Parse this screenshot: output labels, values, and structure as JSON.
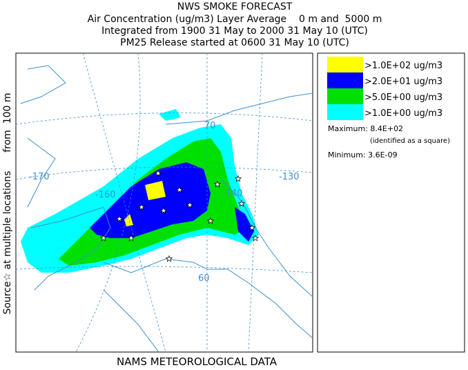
{
  "header": {
    "title": "NWS SMOKE FORECAST",
    "lines": [
      "Air Concentration (ug/m3) Layer Average    0 m and  5000 m",
      "Integrated from 1900 31 May to 2000 31 May 10 (UTC)",
      "PM25 Release started at 0600 31 May 10 (UTC)"
    ]
  },
  "side_label": "Source☆ at multiple locations      from  100 m",
  "legend": {
    "entries": [
      {
        "label": ">1.0E+02 ug/m3",
        "color": "#ffff00"
      },
      {
        "label": ">2.0E+01 ug/m3",
        "color": "#0000ff"
      },
      {
        "label": ">5.0E+00 ug/m3",
        "color": "#00e000"
      },
      {
        "label": ">1.0E+00 ug/m3",
        "color": "#00ffff"
      }
    ],
    "maximum": "Maximum: 8.4E+02",
    "maximum_note": "(identified as a square)",
    "minimum": "Minimum: 3.6E-09"
  },
  "map": {
    "labels": [
      "-170",
      "-160",
      "-140",
      "-130",
      "70",
      "60"
    ]
  },
  "footer": "NAMS METEOROLOGICAL DATA"
}
